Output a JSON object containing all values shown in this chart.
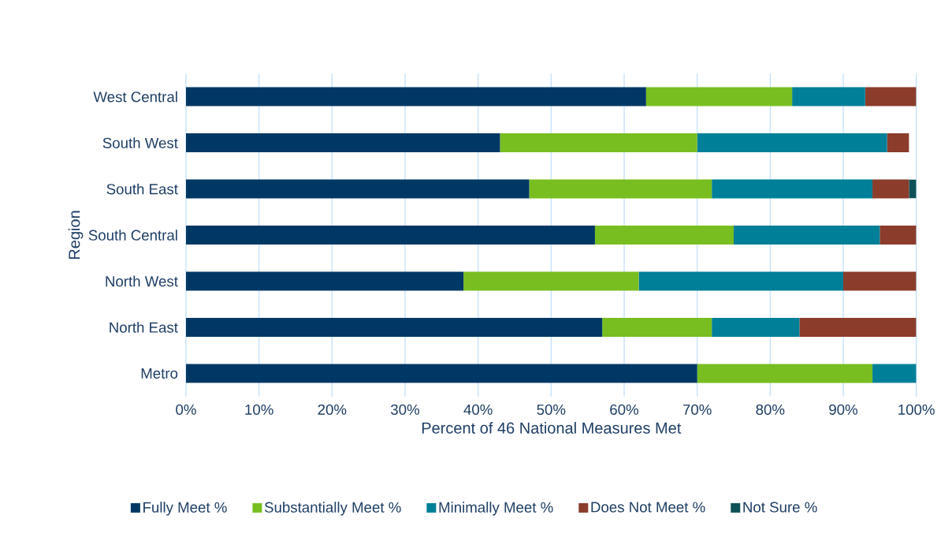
{
  "chart_data": {
    "type": "bar",
    "orientation": "horizontal",
    "stacked": true,
    "xlabel": "Percent of 46 National Measures Met",
    "ylabel": "Region",
    "categories": [
      "West Central",
      "South West",
      "South East",
      "South Central",
      "North West",
      "North East",
      "Metro"
    ],
    "series": [
      {
        "name": "Fully Meet %",
        "color": "#003865",
        "values": [
          63,
          43,
          47,
          56,
          38,
          57,
          70
        ]
      },
      {
        "name": "Substantially Meet %",
        "color": "#78be20",
        "values": [
          20,
          27,
          25,
          19,
          24,
          15,
          24
        ]
      },
      {
        "name": "Minimally Meet %",
        "color": "#007f99",
        "values": [
          10,
          26,
          22,
          20,
          28,
          12,
          6
        ]
      },
      {
        "name": "Does Not Meet %",
        "color": "#8b3c2b",
        "values": [
          7,
          3,
          5,
          5,
          10,
          16,
          0
        ]
      },
      {
        "name": "Not Sure %",
        "color": "#0e5257",
        "values": [
          0,
          0,
          1,
          0,
          0,
          0,
          0
        ]
      }
    ],
    "xlim": [
      0,
      100
    ],
    "xticks": [
      {
        "value": 0,
        "label": "0%"
      },
      {
        "value": 10,
        "label": "10%"
      },
      {
        "value": 20,
        "label": "20%"
      },
      {
        "value": 30,
        "label": "30%"
      },
      {
        "value": 40,
        "label": "40%"
      },
      {
        "value": 50,
        "label": "50%"
      },
      {
        "value": 60,
        "label": "60%"
      },
      {
        "value": 70,
        "label": "70%"
      },
      {
        "value": 80,
        "label": "80%"
      },
      {
        "value": 90,
        "label": "90%"
      },
      {
        "value": 100,
        "label": "100%"
      }
    ],
    "grid": "x",
    "legend": "bottom"
  }
}
